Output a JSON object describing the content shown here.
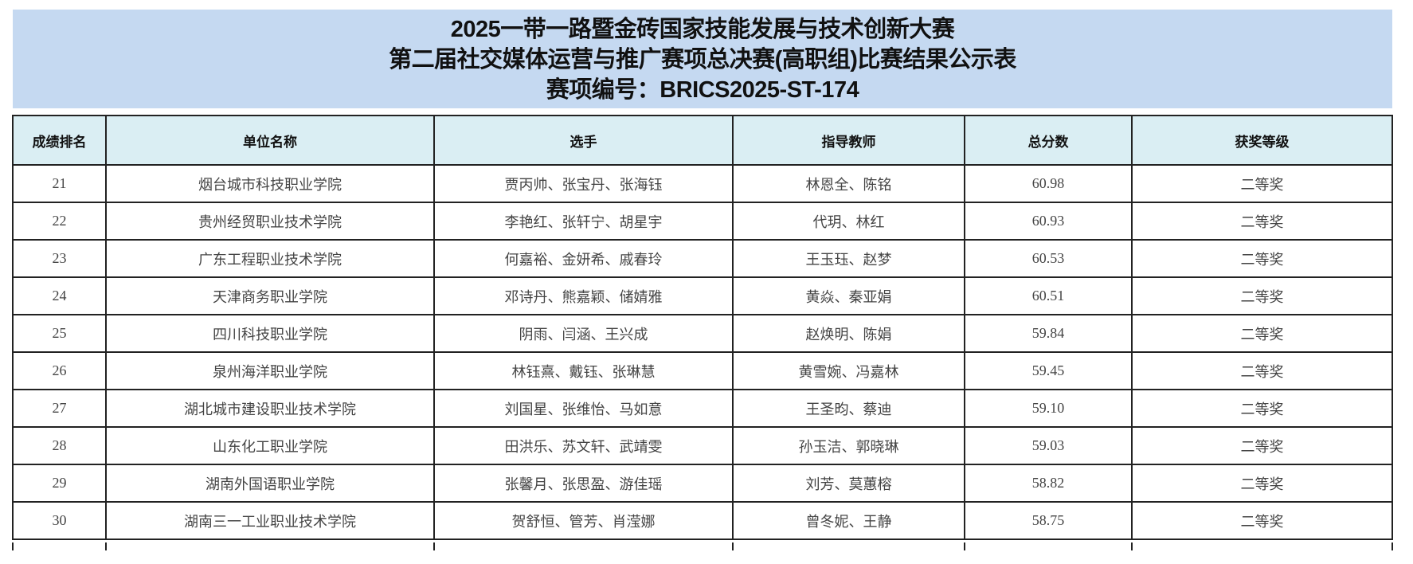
{
  "title": {
    "line1": "2025一带一路暨金砖国家技能发展与技术创新大赛",
    "line2": "第二届社交媒体运营与推广赛项总决赛(高职组)比赛结果公示表",
    "line3": "赛项编号：BRICS2025-ST-174"
  },
  "colors": {
    "banner": "#c5d9f1",
    "header": "#daeef3"
  },
  "table": {
    "headers": [
      "成绩排名",
      "单位名称",
      "选手",
      "指导教师",
      "总分数",
      "获奖等级"
    ],
    "rows": [
      [
        "21",
        "烟台城市科技职业学院",
        "贾丙帅、张宝丹、张海钰",
        "林恩全、陈铭",
        "60.98",
        "二等奖"
      ],
      [
        "22",
        "贵州经贸职业技术学院",
        "李艳红、张轩宁、胡星宇",
        "代玥、林红",
        "60.93",
        "二等奖"
      ],
      [
        "23",
        "广东工程职业技术学院",
        "何嘉裕、金妍希、戚春玲",
        "王玉珏、赵梦",
        "60.53",
        "二等奖"
      ],
      [
        "24",
        "天津商务职业学院",
        "邓诗丹、熊嘉颖、储婧雅",
        "黄焱、秦亚娟",
        "60.51",
        "二等奖"
      ],
      [
        "25",
        "四川科技职业学院",
        "阴雨、闫涵、王兴成",
        "赵焕明、陈娟",
        "59.84",
        "二等奖"
      ],
      [
        "26",
        "泉州海洋职业学院",
        "林钰熹、戴钰、张琳慧",
        "黄雪婉、冯嘉林",
        "59.45",
        "二等奖"
      ],
      [
        "27",
        "湖北城市建设职业技术学院",
        "刘国星、张维怡、马如意",
        "王圣昀、蔡迪",
        "59.10",
        "二等奖"
      ],
      [
        "28",
        "山东化工职业学院",
        "田洪乐、苏文轩、武靖雯",
        "孙玉洁、郭晓琳",
        "59.03",
        "二等奖"
      ],
      [
        "29",
        "湖南外国语职业学院",
        "张馨月、张思盈、游佳瑶",
        "刘芳、莫蕙榕",
        "58.82",
        "二等奖"
      ],
      [
        "30",
        "湖南三一工业职业技术学院",
        "贺舒恒、管芳、肖滢娜",
        "曾冬妮、王静",
        "58.75",
        "二等奖"
      ]
    ]
  }
}
